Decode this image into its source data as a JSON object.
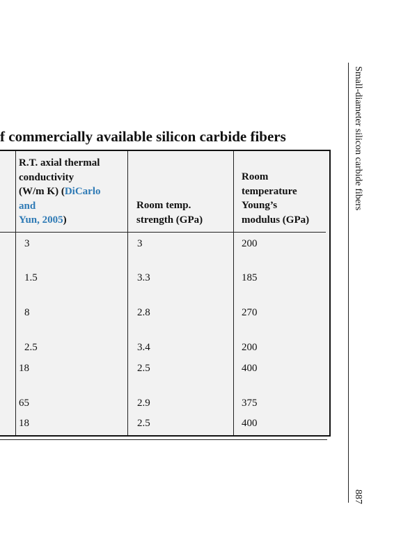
{
  "title": "f commercially available silicon carbide fibers",
  "table": {
    "header": [
      {
        "lines": [
          "R.T. axial thermal",
          "conductivity",
          "(W/m K) ("
        ],
        "citation": [
          "DiCarlo",
          "and",
          "Yun, 2005"
        ],
        "closing": ")"
      },
      {
        "lines": [
          "Room temp.",
          "strength (GPa)"
        ]
      },
      {
        "lines": [
          "Room",
          "temperature",
          "Young’s",
          "modulus (GPa)"
        ]
      }
    ],
    "rows": [
      [
        "3",
        "3",
        "200"
      ],
      [
        "1.5",
        "3.3",
        "185"
      ],
      [
        "8",
        "2.8",
        "270"
      ],
      [
        "2.5",
        "3.4",
        "200"
      ],
      [
        "18",
        "2.5",
        "400"
      ],
      [
        "65",
        "2.9",
        "375"
      ],
      [
        "18",
        "2.5",
        "400"
      ]
    ]
  },
  "running_head": "Small-diameter silicon carbide fibers",
  "page_number": "887"
}
